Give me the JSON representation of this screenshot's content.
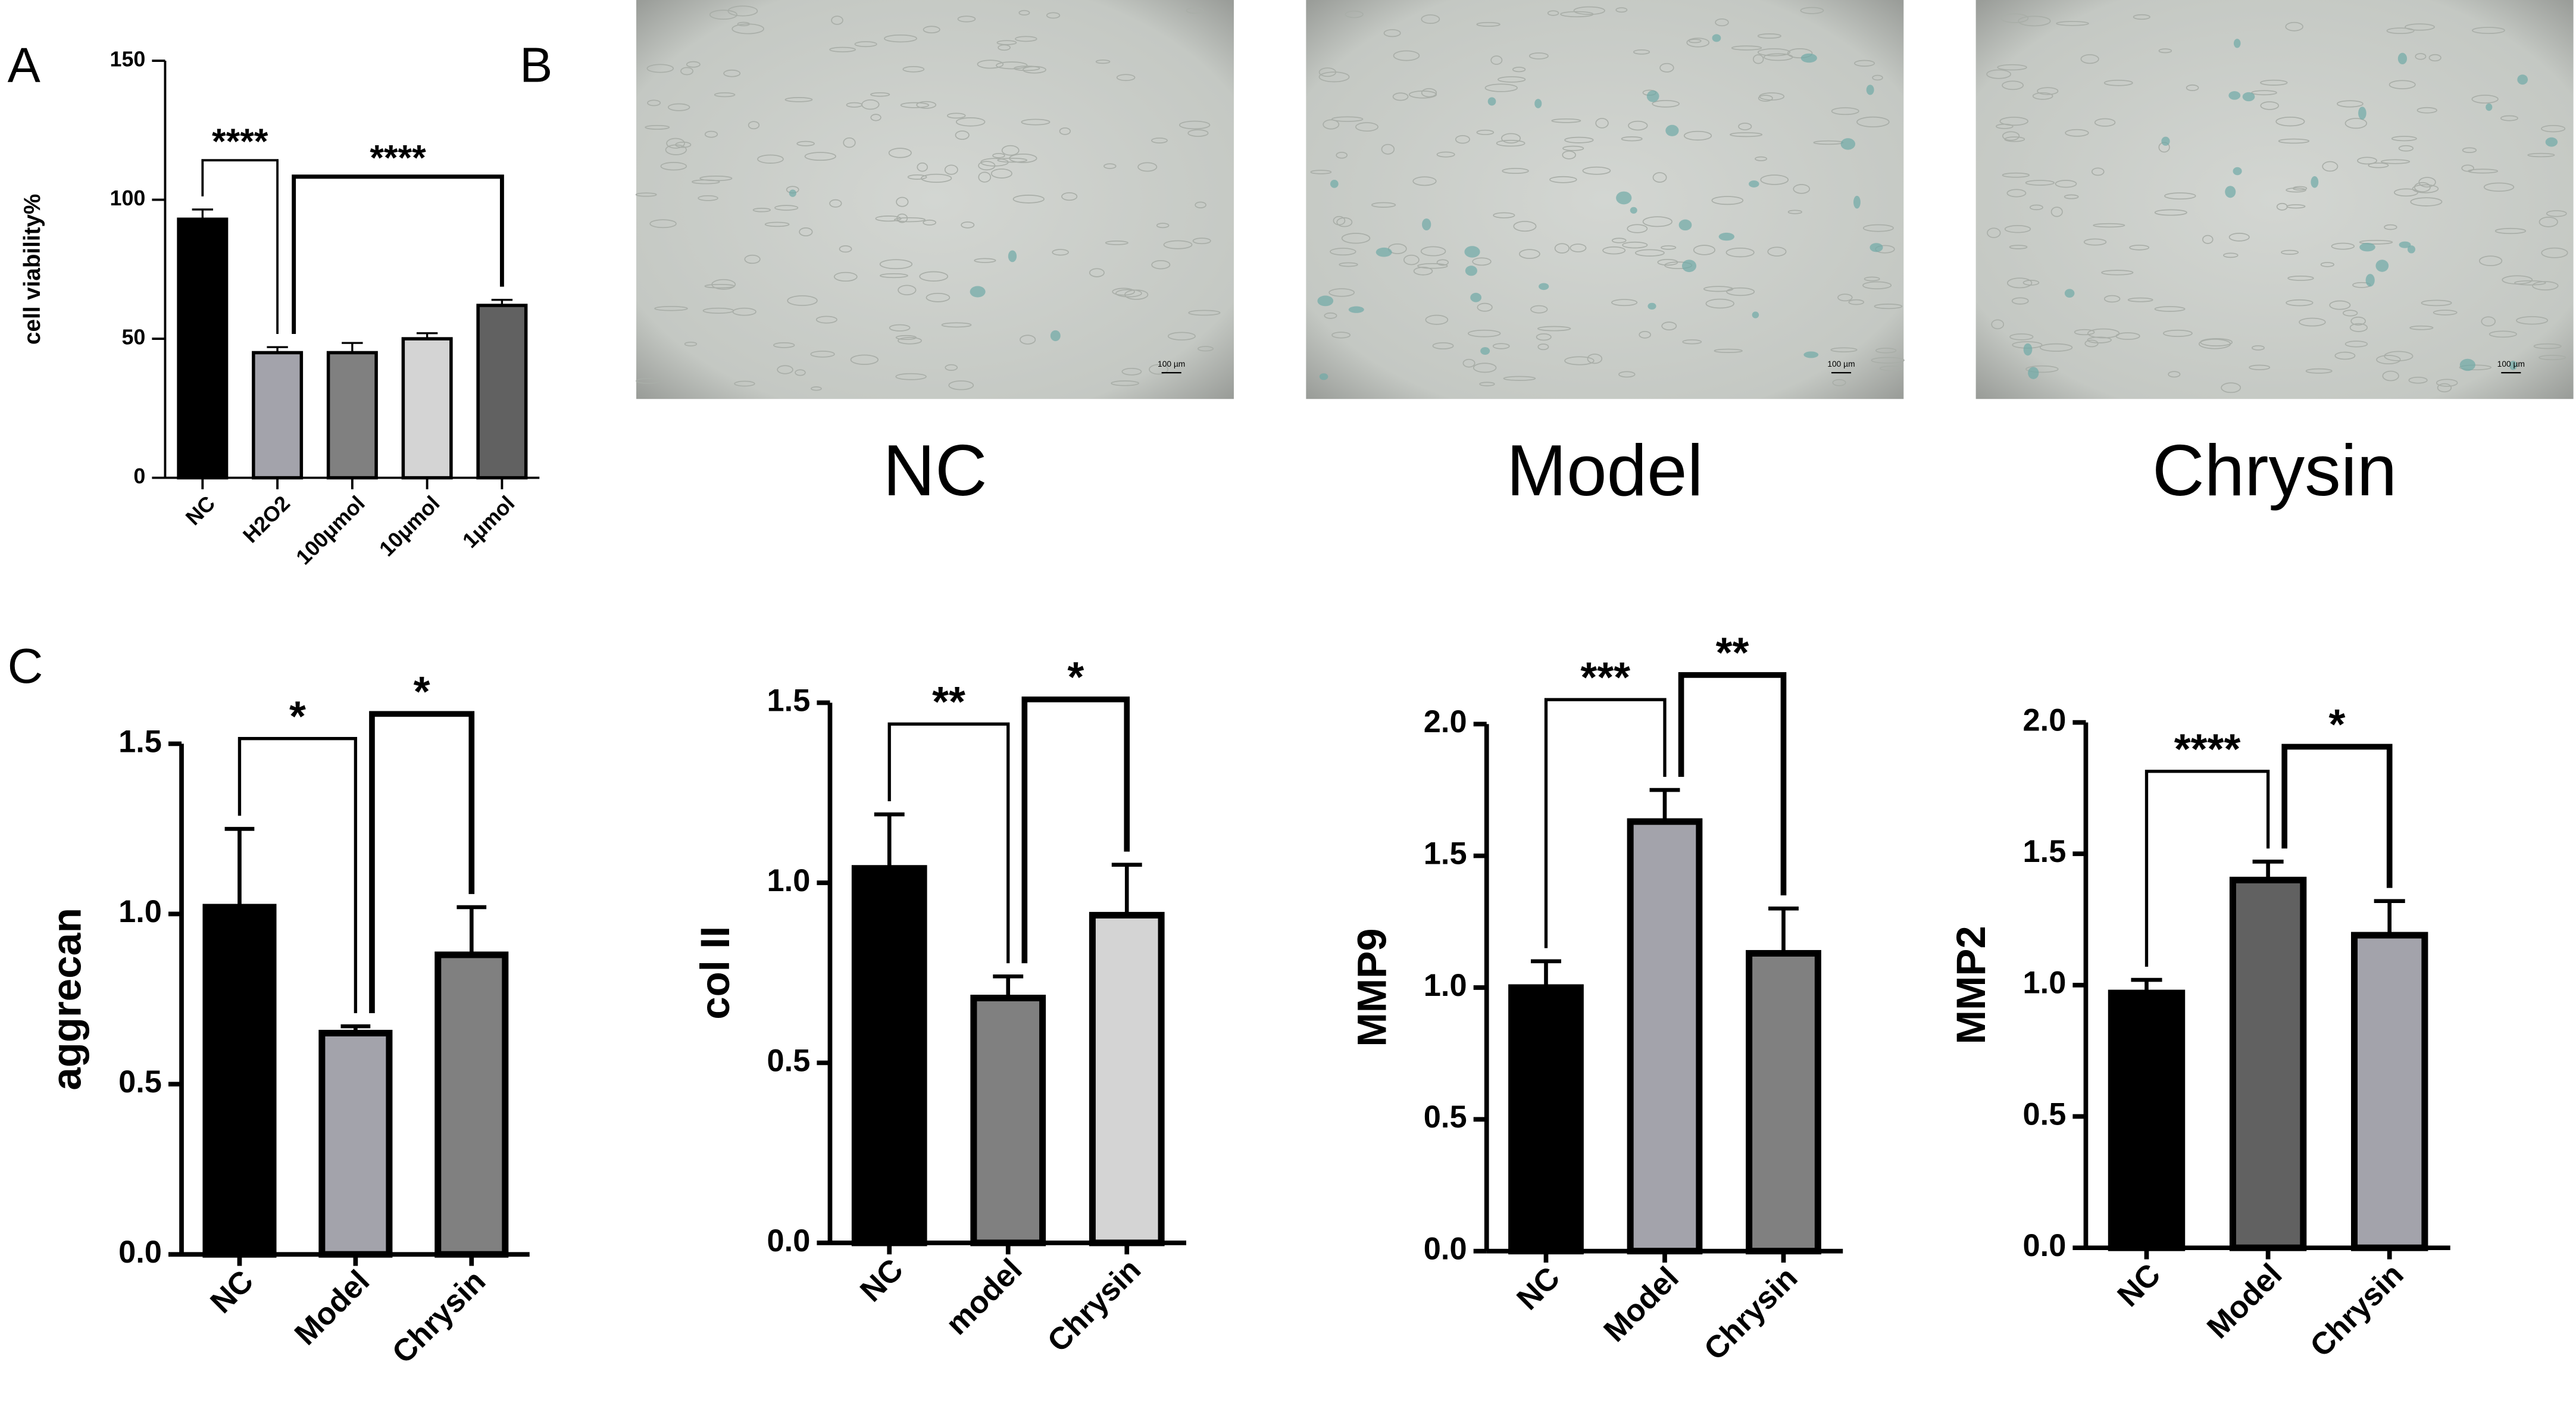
{
  "panel_labels": {
    "a": "A",
    "b": "B",
    "c": "C"
  },
  "micrographs": [
    {
      "caption": "NC",
      "scale_bar": "100 µm"
    },
    {
      "caption": "Model",
      "scale_bar": "100 µm"
    },
    {
      "caption": "Chrysin",
      "scale_bar": "100 µm"
    }
  ],
  "chart_data": [
    {
      "type": "bar",
      "ylabel": "cell viability%",
      "categories": [
        "NC",
        "H2O2",
        "100μmol",
        "10μmol",
        "1μmol"
      ],
      "values": [
        93,
        45,
        45,
        50,
        62
      ],
      "errors": [
        3.5,
        2,
        3.5,
        2,
        2
      ],
      "colors": [
        "#000000",
        "#a3a3ab",
        "#808080",
        "#d4d4d4",
        "#616161"
      ],
      "ylim": [
        0,
        150
      ],
      "yticks": [
        0,
        50,
        100,
        150
      ],
      "annotations": [
        {
          "label": "****",
          "between": [
            "NC",
            "H2O2"
          ]
        },
        {
          "label": "****",
          "between": [
            "H2O2",
            "1μmol"
          ]
        }
      ]
    },
    {
      "type": "bar",
      "ylabel": "aggrecan",
      "categories": [
        "NC",
        "Model",
        "Chrysin"
      ],
      "values": [
        1.02,
        0.65,
        0.88
      ],
      "errors": [
        0.23,
        0.02,
        0.14
      ],
      "colors": [
        "#000000",
        "#a3a3ab",
        "#808080"
      ],
      "ylim": [
        0,
        1.5
      ],
      "yticks": [
        {
          "value": 0,
          "label": "0.0"
        },
        0.5,
        {
          "value": 1,
          "label": "1.0"
        },
        1.5
      ],
      "annotations": [
        {
          "label": "*",
          "between": [
            "NC",
            "Model"
          ]
        },
        {
          "label": "*",
          "between": [
            "Model",
            "Chrysin"
          ]
        }
      ]
    },
    {
      "type": "bar",
      "ylabel": "col II",
      "categories": [
        "NC",
        "model",
        "Chrysin"
      ],
      "values": [
        1.04,
        0.68,
        0.91
      ],
      "errors": [
        0.15,
        0.06,
        0.14
      ],
      "colors": [
        "#000000",
        "#808080",
        "#d4d4d4"
      ],
      "ylim": [
        0,
        1.5
      ],
      "yticks": [
        {
          "value": 0,
          "label": "0.0"
        },
        0.5,
        {
          "value": 1,
          "label": "1.0"
        },
        1.5
      ],
      "annotations": [
        {
          "label": "**",
          "between": [
            "NC",
            "model"
          ]
        },
        {
          "label": "*",
          "between": [
            "model",
            "Chrysin"
          ]
        }
      ]
    },
    {
      "type": "bar",
      "ylabel": "MMP9",
      "categories": [
        "NC",
        "Model",
        "Chrysin"
      ],
      "values": [
        1.0,
        1.63,
        1.13
      ],
      "errors": [
        0.1,
        0.12,
        0.17
      ],
      "colors": [
        "#000000",
        "#a3a3ab",
        "#808080"
      ],
      "ylim": [
        0,
        2
      ],
      "yticks": [
        {
          "value": 0,
          "label": "0.0"
        },
        0.5,
        {
          "value": 1,
          "label": "1.0"
        },
        1.5,
        {
          "value": 2,
          "label": "2.0"
        }
      ],
      "annotations": [
        {
          "label": "***",
          "between": [
            "NC",
            "Model"
          ]
        },
        {
          "label": "**",
          "between": [
            "Model",
            "Chrysin"
          ]
        }
      ]
    },
    {
      "type": "bar",
      "ylabel": "MMP2",
      "categories": [
        "NC",
        "Model",
        "Chrysin"
      ],
      "values": [
        0.97,
        1.4,
        1.19
      ],
      "errors": [
        0.05,
        0.07,
        0.13
      ],
      "colors": [
        "#000000",
        "#616161",
        "#a3a3ab"
      ],
      "ylim": [
        0,
        2
      ],
      "yticks": [
        {
          "value": 0,
          "label": "0.0"
        },
        0.5,
        {
          "value": 1,
          "label": "1.0"
        },
        1.5,
        {
          "value": 2,
          "label": "2.0"
        }
      ],
      "annotations": [
        {
          "label": "****",
          "between": [
            "NC",
            "Model"
          ]
        },
        {
          "label": "*",
          "between": [
            "Model",
            "Chrysin"
          ]
        }
      ]
    }
  ]
}
